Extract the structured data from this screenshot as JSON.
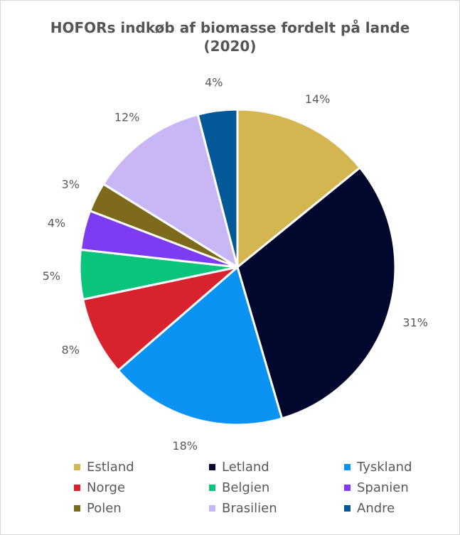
{
  "chart_data": {
    "type": "pie",
    "title": "HOFORs indkøb af biomasse fordelt på lande (2020)",
    "title_lines": [
      "HOFORs indkøb af biomasse fordelt på lande",
      "(2020)"
    ],
    "categories": [
      "Estland",
      "Letland",
      "Tyskland",
      "Norge",
      "Belgien",
      "Spanien",
      "Polen",
      "Brasilien",
      "Andre"
    ],
    "values": [
      14,
      31,
      18,
      8,
      5,
      4,
      3,
      12,
      4
    ],
    "data_labels": [
      "14%",
      "31%",
      "18%",
      "8%",
      "5%",
      "4%",
      "3%",
      "12%",
      "4%"
    ],
    "colors": [
      "#d4b650",
      "#02072e",
      "#0b93f4",
      "#d8232f",
      "#09c47a",
      "#7d3cf2",
      "#7e6a1c",
      "#c9b7f5",
      "#045898"
    ],
    "legend_position": "bottom",
    "start_angle_deg": 0,
    "direction": "clockwise"
  }
}
